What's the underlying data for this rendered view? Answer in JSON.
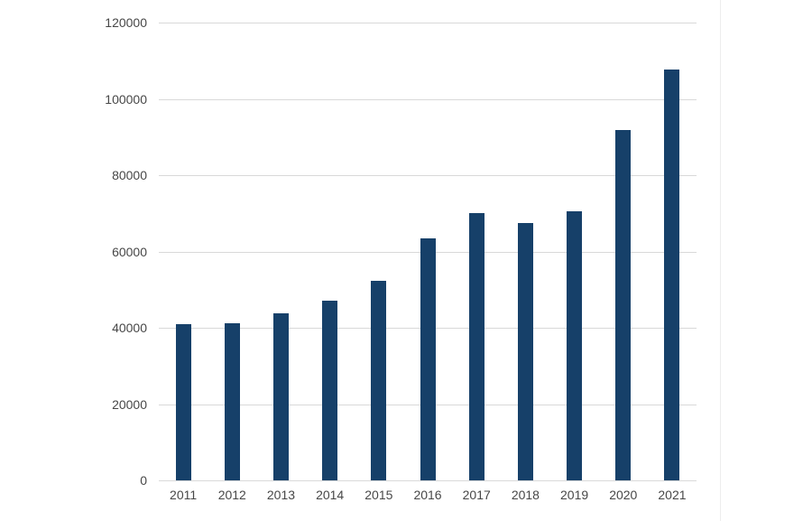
{
  "chart_data": {
    "type": "bar",
    "title": "",
    "xlabel": "",
    "ylabel": "",
    "categories": [
      "2011",
      "2012",
      "2013",
      "2014",
      "2015",
      "2016",
      "2017",
      "2018",
      "2019",
      "2020",
      "2021"
    ],
    "values": [
      41000,
      41300,
      43800,
      47000,
      52300,
      63400,
      70100,
      67400,
      70600,
      91900,
      107700
    ],
    "ylim": [
      0,
      120000
    ],
    "yticks": [
      0,
      20000,
      40000,
      60000,
      80000,
      100000,
      120000
    ],
    "ytick_labels": [
      "0",
      "20000",
      "40000",
      "60000",
      "80000",
      "100000",
      "120000"
    ],
    "grid": true,
    "legend": false,
    "colors": {
      "bar": "#164069",
      "gridline": "#d9d9d9",
      "axis_label": "#474747",
      "background": "#ffffff",
      "page_edge": "#ededed"
    }
  }
}
